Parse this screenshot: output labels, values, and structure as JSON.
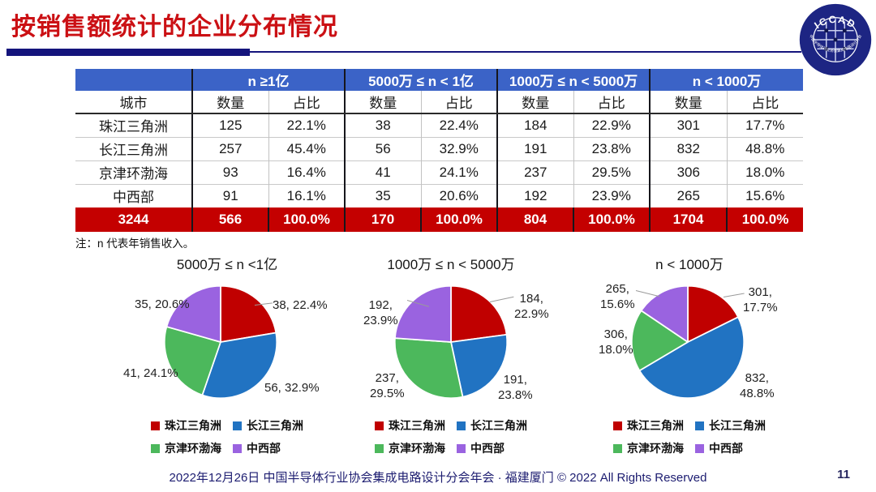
{
  "header": {
    "title": "按销售额统计的企业分布情况"
  },
  "logo": {
    "text": "ICCAD",
    "ring_text": "中国半导体行业协会集成电路设计分会"
  },
  "table": {
    "group_headers": [
      "n ≥1亿",
      "5000万 ≤ n < 1亿",
      "1000万 ≤ n < 5000万",
      "n < 1000万"
    ],
    "sub_headers": {
      "city": "城市",
      "count": "数量",
      "share": "占比"
    },
    "rows": [
      {
        "city": "珠江三角洲",
        "cells": [
          "125",
          "22.1%",
          "38",
          "22.4%",
          "184",
          "22.9%",
          "301",
          "17.7%"
        ]
      },
      {
        "city": "长江三角洲",
        "cells": [
          "257",
          "45.4%",
          "56",
          "32.9%",
          "191",
          "23.8%",
          "832",
          "48.8%"
        ]
      },
      {
        "city": "京津环渤海",
        "cells": [
          "93",
          "16.4%",
          "41",
          "24.1%",
          "237",
          "29.5%",
          "306",
          "18.0%"
        ]
      },
      {
        "city": "中西部",
        "cells": [
          "91",
          "16.1%",
          "35",
          "20.6%",
          "192",
          "23.9%",
          "265",
          "15.6%"
        ]
      }
    ],
    "total_row": {
      "city": "3244",
      "cells": [
        "566",
        "100.0%",
        "170",
        "100.0%",
        "804",
        "100.0%",
        "1704",
        "100.0%"
      ]
    },
    "note": "注：n 代表年销售收入。"
  },
  "chart_data": [
    {
      "type": "pie",
      "title": "5000万 ≤ n <1亿",
      "categories": [
        "珠江三角洲",
        "长江三角洲",
        "京津环渤海",
        "中西部"
      ],
      "values": [
        38,
        56,
        41,
        35
      ],
      "percents": [
        22.4,
        32.9,
        24.1,
        20.6
      ],
      "labels": [
        "38, 22.4%",
        "56, 32.9%",
        "41, 24.1%",
        "35, 20.6%"
      ],
      "colors": [
        "#c00000",
        "#2173c2",
        "#4cb85c",
        "#9a63e0"
      ],
      "start_angle": "top",
      "direction": "clockwise",
      "legend_position": "bottom"
    },
    {
      "type": "pie",
      "title": "1000万 ≤ n < 5000万",
      "categories": [
        "珠江三角洲",
        "长江三角洲",
        "京津环渤海",
        "中西部"
      ],
      "values": [
        184,
        191,
        237,
        192
      ],
      "percents": [
        22.9,
        23.8,
        29.5,
        23.9
      ],
      "labels": [
        "184,\n22.9%",
        "191,\n23.8%",
        "237,\n29.5%",
        "192,\n23.9%"
      ],
      "colors": [
        "#c00000",
        "#2173c2",
        "#4cb85c",
        "#9a63e0"
      ],
      "start_angle": "top",
      "direction": "clockwise",
      "legend_position": "bottom"
    },
    {
      "type": "pie",
      "title": "n < 1000万",
      "categories": [
        "珠江三角洲",
        "长江三角洲",
        "京津环渤海",
        "中西部"
      ],
      "values": [
        301,
        832,
        306,
        265
      ],
      "percents": [
        17.7,
        48.8,
        18.0,
        15.6
      ],
      "labels": [
        "301,\n17.7%",
        "832,\n48.8%",
        "306,\n18.0%",
        "265,\n15.6%"
      ],
      "colors": [
        "#c00000",
        "#2173c2",
        "#4cb85c",
        "#9a63e0"
      ],
      "start_angle": "top",
      "direction": "clockwise",
      "legend_position": "bottom"
    }
  ],
  "legend": {
    "items": [
      {
        "label": "珠江三角洲",
        "color": "#c00000"
      },
      {
        "label": "长江三角洲",
        "color": "#2173c2"
      },
      {
        "label": "京津环渤海",
        "color": "#4cb85c"
      },
      {
        "label": "中西部",
        "color": "#9a63e0"
      }
    ]
  },
  "colors": {
    "header_blue": "#3b63c7",
    "total_red": "#c40000",
    "title_red": "#cb1014",
    "divider_navy": "#14147c"
  },
  "footer": {
    "text": "2022年12月26日 中国半导体行业协会集成电路设计分会年会 · 福建厦门 © 2022 All Rights Reserved",
    "page": "11"
  }
}
